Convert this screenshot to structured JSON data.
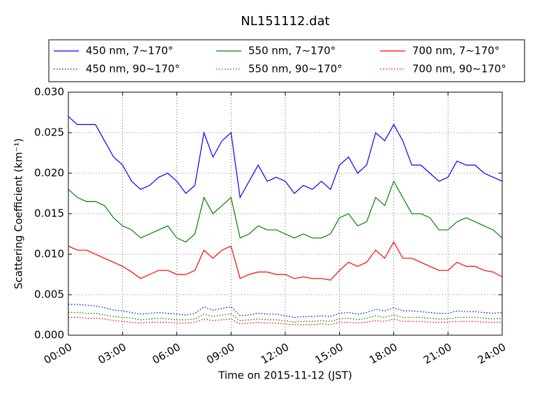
{
  "chart_data": {
    "type": "line",
    "title": "NL151112.dat",
    "x_label": "Time on 2015-11-12 (JST)",
    "y_label": "Scattering Coefficient (km⁻¹)",
    "x": [
      0,
      0.5,
      1,
      1.5,
      2,
      2.5,
      3,
      3.5,
      4,
      4.5,
      5,
      5.5,
      6,
      6.5,
      7,
      7.5,
      8,
      8.5,
      9,
      9.5,
      10,
      10.5,
      11,
      11.5,
      12,
      12.5,
      13,
      13.5,
      14,
      14.5,
      15,
      15.5,
      16,
      16.5,
      17,
      17.5,
      18,
      18.5,
      19,
      19.5,
      20,
      20.5,
      21,
      21.5,
      22,
      22.5,
      23,
      23.5,
      24
    ],
    "xlim": [
      0,
      24
    ],
    "xticks": [
      {
        "value": 0,
        "label": "00:00"
      },
      {
        "value": 3,
        "label": "03:00"
      },
      {
        "value": 6,
        "label": "06:00"
      },
      {
        "value": 9,
        "label": "09:00"
      },
      {
        "value": 12,
        "label": "12:00"
      },
      {
        "value": 15,
        "label": "15:00"
      },
      {
        "value": 18,
        "label": "18:00"
      },
      {
        "value": 21,
        "label": "21:00"
      },
      {
        "value": 24,
        "label": "24:00"
      }
    ],
    "ylim": [
      0,
      0.03
    ],
    "yticks": [
      {
        "value": 0,
        "label": "0.000"
      },
      {
        "value": 0.005,
        "label": "0.005"
      },
      {
        "value": 0.01,
        "label": "0.010"
      },
      {
        "value": 0.015,
        "label": "0.015"
      },
      {
        "value": 0.02,
        "label": "0.020"
      },
      {
        "value": 0.025,
        "label": "0.025"
      },
      {
        "value": 0.03,
        "label": "0.030"
      }
    ],
    "grid": true,
    "legend": "top",
    "series": [
      {
        "name": "450 nm, 7∼170°",
        "color": "#0000ff",
        "style": "solid",
        "values": [
          0.027,
          0.026,
          0.026,
          0.026,
          0.024,
          0.022,
          0.021,
          0.019,
          0.018,
          0.0185,
          0.0195,
          0.02,
          0.019,
          0.0175,
          0.0185,
          0.025,
          0.022,
          0.024,
          0.025,
          0.017,
          0.019,
          0.021,
          0.019,
          0.0195,
          0.019,
          0.0175,
          0.0185,
          0.018,
          0.019,
          0.018,
          0.021,
          0.022,
          0.02,
          0.021,
          0.025,
          0.024,
          0.026,
          0.024,
          0.021,
          0.021,
          0.02,
          0.019,
          0.0195,
          0.0215,
          0.021,
          0.021,
          0.02,
          0.0195,
          0.019
        ]
      },
      {
        "name": "450 nm, 90∼170°",
        "color": "#0000ff",
        "style": "dotted",
        "values": [
          0.0038,
          0.0038,
          0.0037,
          0.0036,
          0.0034,
          0.0031,
          0.003,
          0.0028,
          0.0026,
          0.0027,
          0.0028,
          0.0027,
          0.0026,
          0.0025,
          0.0027,
          0.0035,
          0.0031,
          0.0033,
          0.0035,
          0.0024,
          0.0025,
          0.0027,
          0.0026,
          0.0026,
          0.0024,
          0.0022,
          0.0023,
          0.0023,
          0.0024,
          0.0023,
          0.0027,
          0.0028,
          0.0026,
          0.0028,
          0.0032,
          0.003,
          0.0034,
          0.003,
          0.003,
          0.0029,
          0.0028,
          0.0027,
          0.0027,
          0.003,
          0.0029,
          0.0029,
          0.0028,
          0.0027,
          0.0028
        ]
      },
      {
        "name": "550 nm, 7∼170°",
        "color": "#008000",
        "style": "solid",
        "values": [
          0.018,
          0.017,
          0.0165,
          0.0165,
          0.016,
          0.0145,
          0.0135,
          0.013,
          0.012,
          0.0125,
          0.013,
          0.0135,
          0.012,
          0.0115,
          0.0125,
          0.017,
          0.015,
          0.016,
          0.017,
          0.012,
          0.0125,
          0.0135,
          0.013,
          0.013,
          0.0125,
          0.012,
          0.0125,
          0.012,
          0.012,
          0.0125,
          0.0145,
          0.015,
          0.0135,
          0.014,
          0.017,
          0.016,
          0.019,
          0.017,
          0.015,
          0.015,
          0.0145,
          0.013,
          0.013,
          0.014,
          0.0145,
          0.014,
          0.0135,
          0.013,
          0.012
        ]
      },
      {
        "name": "550 nm, 90∼170°",
        "color": "#008000",
        "style": "dotted",
        "values": [
          0.0028,
          0.0028,
          0.0027,
          0.0027,
          0.0025,
          0.0023,
          0.0022,
          0.0021,
          0.0019,
          0.002,
          0.0021,
          0.002,
          0.0019,
          0.0019,
          0.002,
          0.0026,
          0.0023,
          0.0025,
          0.0026,
          0.0018,
          0.0019,
          0.002,
          0.0019,
          0.0019,
          0.0018,
          0.0016,
          0.0017,
          0.0017,
          0.0018,
          0.0017,
          0.002,
          0.0021,
          0.0019,
          0.0021,
          0.0024,
          0.0022,
          0.0025,
          0.0022,
          0.0022,
          0.0022,
          0.0021,
          0.002,
          0.002,
          0.0022,
          0.0022,
          0.0022,
          0.0021,
          0.002,
          0.0021
        ]
      },
      {
        "name": "700 nm, 7∼170°",
        "color": "#ff0000",
        "style": "solid",
        "values": [
          0.011,
          0.0105,
          0.0105,
          0.01,
          0.0095,
          0.009,
          0.0085,
          0.0078,
          0.007,
          0.0075,
          0.008,
          0.008,
          0.0075,
          0.0075,
          0.008,
          0.0105,
          0.0095,
          0.0105,
          0.011,
          0.007,
          0.0075,
          0.0078,
          0.0078,
          0.0075,
          0.0075,
          0.007,
          0.0072,
          0.007,
          0.007,
          0.0068,
          0.008,
          0.009,
          0.0085,
          0.009,
          0.0105,
          0.0095,
          0.0115,
          0.0095,
          0.0095,
          0.009,
          0.0085,
          0.008,
          0.008,
          0.009,
          0.0085,
          0.0085,
          0.008,
          0.0078,
          0.0072
        ]
      },
      {
        "name": "700 nm, 90∼170°",
        "color": "#ff0000",
        "style": "dotted",
        "values": [
          0.0022,
          0.0022,
          0.0021,
          0.0021,
          0.002,
          0.0018,
          0.0017,
          0.0016,
          0.0015,
          0.0016,
          0.0016,
          0.0016,
          0.0015,
          0.0015,
          0.0016,
          0.002,
          0.0018,
          0.0019,
          0.002,
          0.0014,
          0.0015,
          0.0016,
          0.0015,
          0.0015,
          0.0014,
          0.0013,
          0.0013,
          0.0013,
          0.0014,
          0.0013,
          0.0016,
          0.0016,
          0.0015,
          0.0016,
          0.0018,
          0.0017,
          0.002,
          0.0017,
          0.0017,
          0.0017,
          0.0016,
          0.0016,
          0.0016,
          0.0017,
          0.0017,
          0.0017,
          0.0016,
          0.0016,
          0.0016
        ]
      }
    ]
  }
}
